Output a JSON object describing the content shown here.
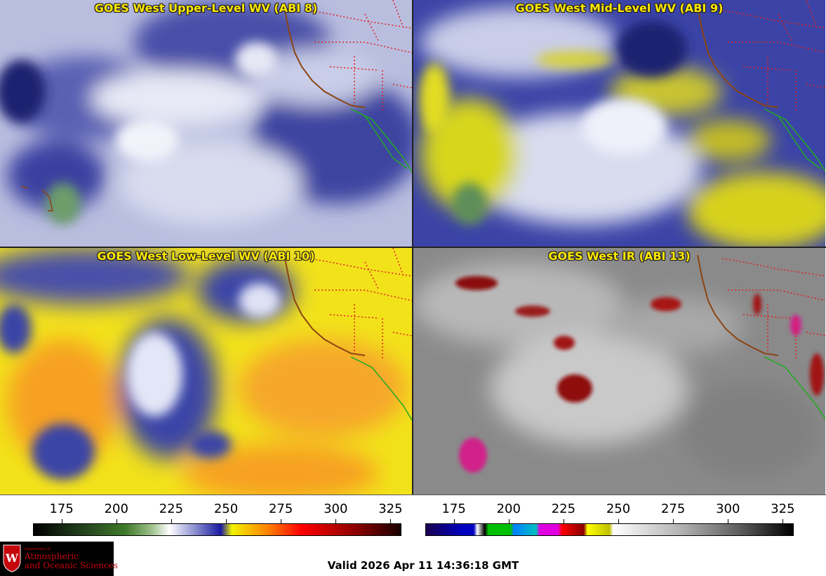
{
  "panels": [
    {
      "title": "GOES West Upper-Level WV (ABI 8)",
      "scheme": "upper"
    },
    {
      "title": "GOES West Mid-Level WV (ABI 9)",
      "scheme": "mid"
    },
    {
      "title": "GOES West Low-Level WV (ABI 10)",
      "scheme": "low"
    },
    {
      "title": "GOES West IR (ABI 13)",
      "scheme": "ir"
    }
  ],
  "colorbars": {
    "wv": {
      "ticks": [
        "175",
        "200",
        "225",
        "250",
        "275",
        "300",
        "325"
      ],
      "range": [
        162,
        330
      ]
    },
    "ir": {
      "ticks": [
        "175",
        "200",
        "225",
        "250",
        "275",
        "300",
        "325"
      ],
      "range": [
        162,
        330
      ]
    }
  },
  "logo": {
    "small_text": "Department of",
    "line1": "Atmospheric",
    "line2": "and Oceanic Sciences",
    "seal_letter": "W"
  },
  "valid_time": "Valid 2026 Apr 11 14:36:18 GMT",
  "colors": {
    "title": "#ffe800",
    "state_lines": "#e02020",
    "coast": "#8b4513",
    "mexico": "#22aa22",
    "logo_red": "#c5050c"
  }
}
